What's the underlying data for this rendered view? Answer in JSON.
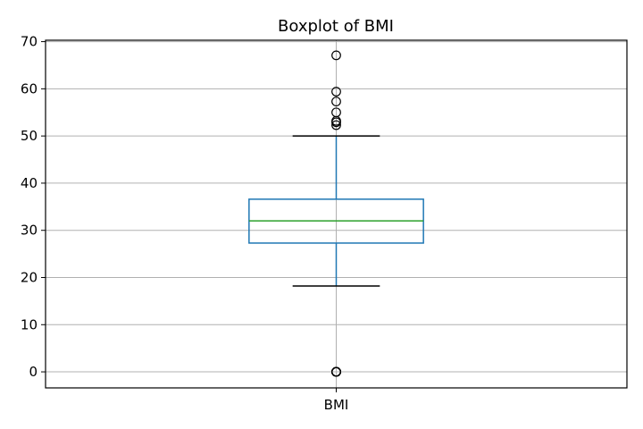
{
  "chart_data": {
    "type": "box",
    "title": "Boxplot of BMI",
    "xlabel": "",
    "ylabel": "",
    "categories": [
      "BMI"
    ],
    "ylim": [
      -3.4,
      70.3
    ],
    "yticks": [
      0,
      10,
      20,
      30,
      40,
      50,
      60,
      70
    ],
    "grid": true,
    "series": [
      {
        "name": "BMI",
        "whisker_low": 18.2,
        "q1": 27.3,
        "median": 32.0,
        "q3": 36.6,
        "whisker_high": 50.0,
        "outliers": [
          0,
          0,
          0,
          0,
          0,
          0,
          0,
          0,
          0,
          0,
          0,
          52.3,
          52.9,
          53.2,
          55.0,
          57.3,
          59.4,
          67.1
        ]
      }
    ],
    "colors": {
      "box": "#1f77b4",
      "median": "#2ca02c",
      "whisker_cap": "#000000",
      "outlier_edge": "#000000",
      "grid": "#b0b0b0"
    }
  }
}
